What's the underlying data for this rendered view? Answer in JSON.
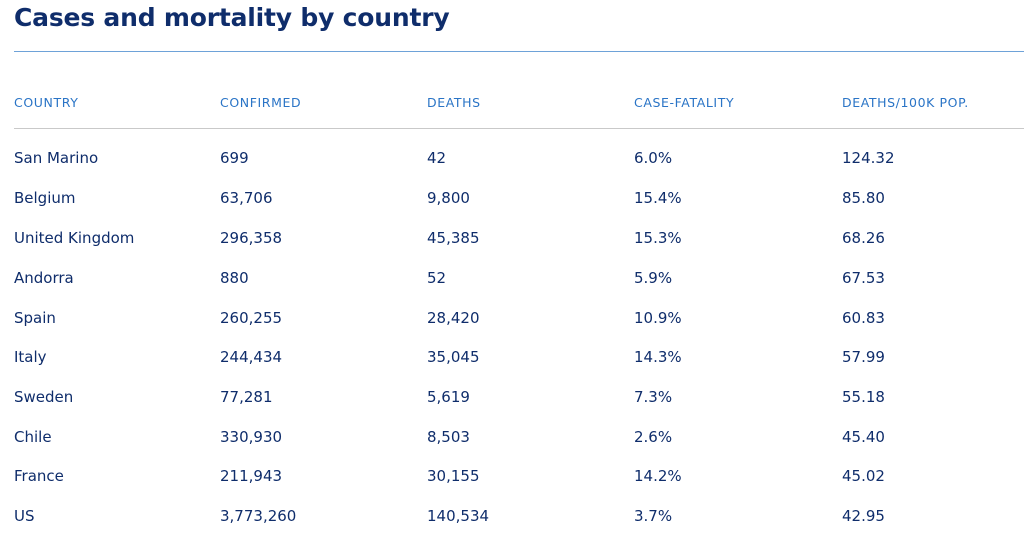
{
  "title": "Cases and mortality by country",
  "table": {
    "headers": [
      "COUNTRY",
      "CONFIRMED",
      "DEATHS",
      "CASE-FATALITY",
      "DEATHS/100K POP."
    ],
    "rows": [
      [
        "San Marino",
        "699",
        "42",
        "6.0%",
        "124.32"
      ],
      [
        "Belgium",
        "63,706",
        "9,800",
        "15.4%",
        "85.80"
      ],
      [
        "United Kingdom",
        "296,358",
        "45,385",
        "15.3%",
        "68.26"
      ],
      [
        "Andorra",
        "880",
        "52",
        "5.9%",
        "67.53"
      ],
      [
        "Spain",
        "260,255",
        "28,420",
        "10.9%",
        "60.83"
      ],
      [
        "Italy",
        "244,434",
        "35,045",
        "14.3%",
        "57.99"
      ],
      [
        "Sweden",
        "77,281",
        "5,619",
        "7.3%",
        "55.18"
      ],
      [
        "Chile",
        "330,930",
        "8,503",
        "2.6%",
        "45.40"
      ],
      [
        "France",
        "211,943",
        "30,155",
        "14.2%",
        "45.02"
      ],
      [
        "US",
        "3,773,260",
        "140,534",
        "3.7%",
        "42.95"
      ]
    ]
  },
  "colors": {
    "title": "#0f2d6b",
    "header_text": "#2a74c6",
    "body_text": "#0f2d6b",
    "title_rule": "#6ea2d8",
    "header_rule": "#c9c9c9"
  }
}
